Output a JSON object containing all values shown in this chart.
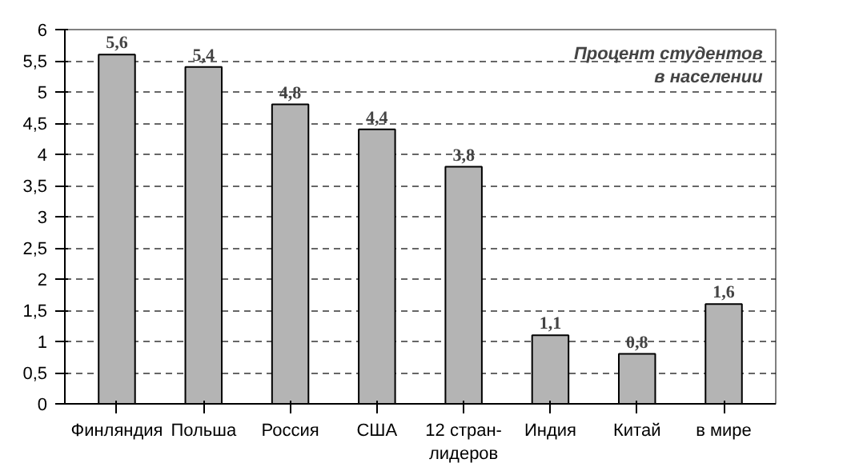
{
  "chart_data": {
    "type": "bar",
    "title": "Процент студентов\nв населении",
    "categories": [
      "Финляндия",
      "Польша",
      "Россия",
      "США",
      "12 стран-\nлидеров",
      "Индия",
      "Китай",
      "в мире"
    ],
    "values": [
      5.6,
      5.4,
      4.8,
      4.4,
      3.8,
      1.1,
      0.8,
      1.6
    ],
    "value_labels": [
      "5,6",
      "5,4",
      "4,8",
      "4,4",
      "3,8",
      "1,1",
      "0,8",
      "1,6"
    ],
    "color": "#b4b4b4",
    "ylim": [
      0,
      6
    ],
    "yticks": [
      0,
      {
        "value": 0.5,
        "label": "0,5"
      },
      1,
      {
        "value": 1.5,
        "label": "1,5"
      },
      2,
      {
        "value": 2.5,
        "label": "2,5"
      },
      3,
      {
        "value": 3.5,
        "label": "3,5"
      },
      4,
      {
        "value": 4.5,
        "label": "4,5"
      },
      5,
      {
        "value": 5.5,
        "label": "5,5"
      },
      6
    ],
    "grid": "y"
  }
}
